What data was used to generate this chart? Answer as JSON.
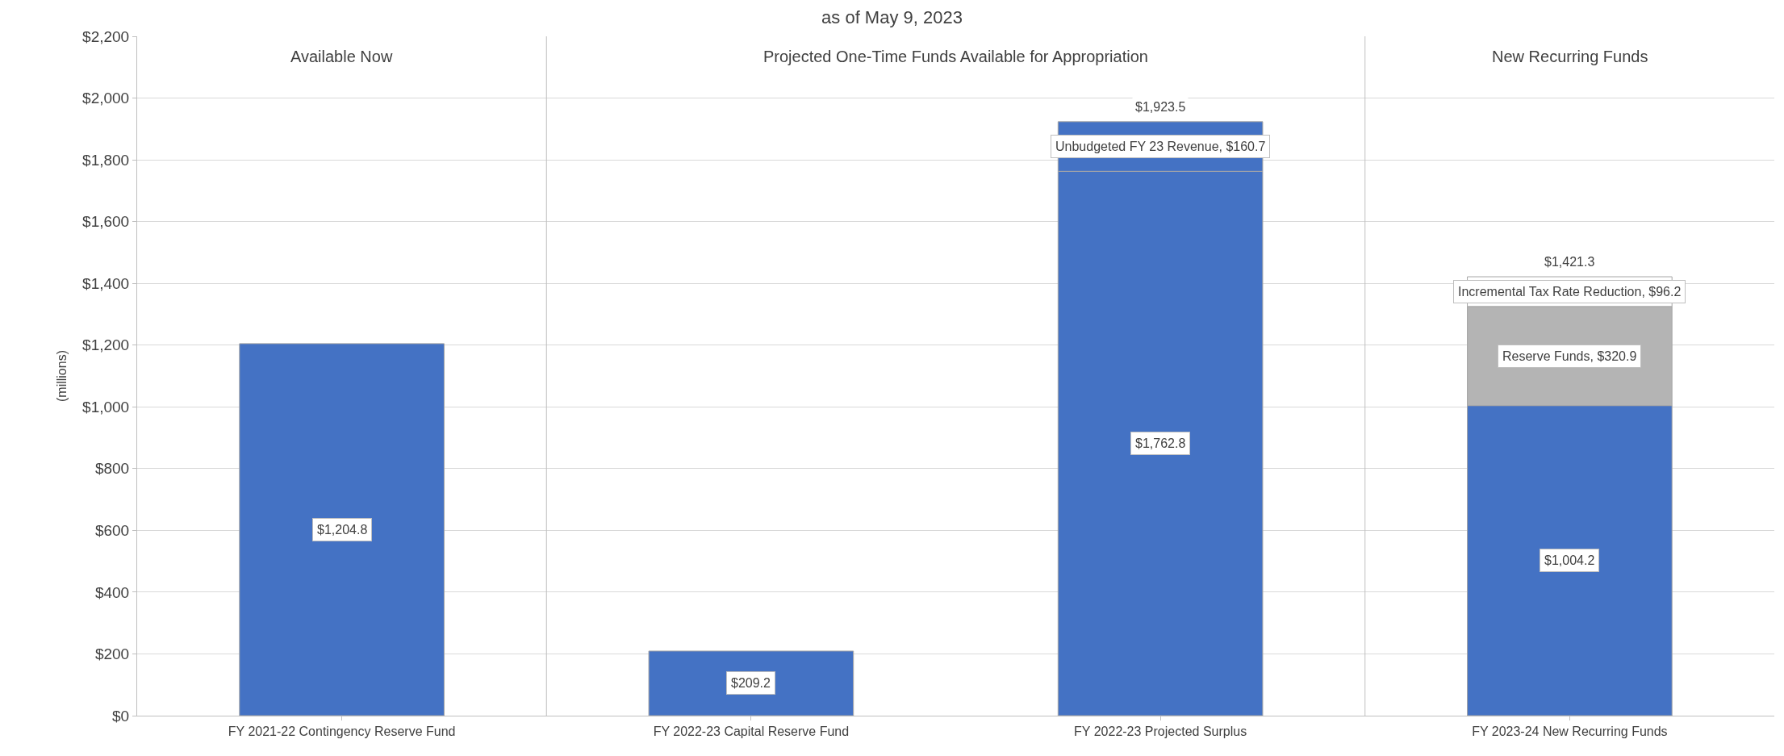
{
  "chart_data": {
    "type": "bar",
    "title": "as of May 9, 2023",
    "ylabel": "(millions)",
    "stacked": true,
    "categories": [
      "FY 2021-22 Contingency Reserve Fund",
      "FY 2022-23 Capital Reserve Fund",
      "FY 2022-23 Projected Surplus",
      "FY 2023-24 New Recurring Funds"
    ],
    "series": [
      {
        "color": "#4472c4",
        "values": [
          1204.8,
          209.2,
          1762.8,
          1004.2
        ],
        "value_labels": [
          "$1,204.8",
          "$209.2",
          "$1,762.8",
          "$1,004.2"
        ]
      },
      {
        "color": "#4472c4",
        "values": [
          null,
          null,
          160.7,
          null
        ],
        "value_labels": [
          null,
          null,
          "Unbudgeted FY 23 Revenue, $160.7",
          null
        ]
      },
      {
        "color": "#b4b4b4",
        "values": [
          null,
          null,
          null,
          320.9
        ],
        "value_labels": [
          null,
          null,
          null,
          "Reserve Funds, $320.9"
        ]
      },
      {
        "color": "#ffffff",
        "values": [
          null,
          null,
          null,
          96.2
        ],
        "value_labels": [
          null,
          null,
          null,
          "Incremental Tax Rate Reduction, $96.2"
        ]
      }
    ],
    "totals": [
      null,
      null,
      "$1,923.5",
      "$1,421.3"
    ],
    "annotations": [
      "Available Now",
      "Projected One-Time Funds Available for Appropriation",
      "New Recurring Funds"
    ],
    "ylim": [
      0,
      2200
    ],
    "yticks": [
      {
        "value": 0,
        "label": "$0"
      },
      {
        "value": 200,
        "label": "$200"
      },
      {
        "value": 400,
        "label": "$400"
      },
      {
        "value": 600,
        "label": "$600"
      },
      {
        "value": 800,
        "label": "$800"
      },
      {
        "value": 1000,
        "label": "$1,000"
      },
      {
        "value": 1200,
        "label": "$1,200"
      },
      {
        "value": 1400,
        "label": "$1,400"
      },
      {
        "value": 1600,
        "label": "$1,600"
      },
      {
        "value": 1800,
        "label": "$1,800"
      },
      {
        "value": 2000,
        "label": "$2,000"
      },
      {
        "value": 2200,
        "label": "$2,200"
      }
    ],
    "grid": "y"
  }
}
